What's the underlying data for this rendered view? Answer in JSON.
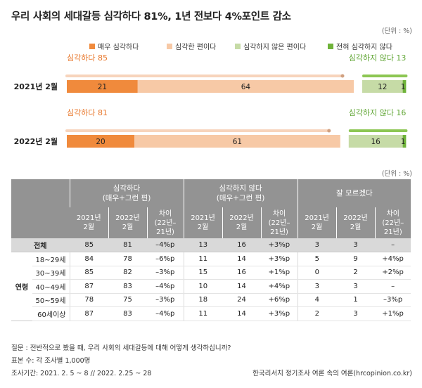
{
  "title": "우리 사회의 세대갈등 심각하다 81%, 1년 전보다 4%포인트 감소",
  "unit": "(단위 : %)",
  "colors": {
    "very_serious": "#f08a3c",
    "serious_ish": "#f7c9a6",
    "not_serious_ish": "#c6dba6",
    "not_at_all": "#6fb33a",
    "serious_line": "#f7d4bc",
    "not_line": "#8cc653",
    "serious_text": "#e8772b",
    "not_text": "#5fa533"
  },
  "chart_data": {
    "type": "bar",
    "orientation": "horizontal",
    "stacked": true,
    "categories": [
      "2021년 2월",
      "2022년 2월"
    ],
    "series": [
      {
        "name": "매우 심각하다",
        "values": [
          21,
          20
        ]
      },
      {
        "name": "심각한 편이다",
        "values": [
          64,
          61
        ]
      },
      {
        "name": "심각하지 않은 편이다",
        "values": [
          12,
          16
        ]
      },
      {
        "name": "전혀 심각하지 않다",
        "values": [
          1,
          1
        ]
      }
    ],
    "summary_left": [
      "심각하다 85",
      "심각하다 81"
    ],
    "summary_right": [
      "심각하지 않다 13",
      "심각하지 않다 16"
    ],
    "legend_position": "top"
  },
  "table": {
    "groups": [
      {
        "line1": "심각하다",
        "line2": "(매우+그런 편)"
      },
      {
        "line1": "심각하지 않다",
        "line2": "(매우+그런 편)"
      },
      {
        "line1": "잘 모르겠다",
        "line2": ""
      }
    ],
    "subheads": [
      {
        "line1": "2021년",
        "line2": "2월",
        "line3": ""
      },
      {
        "line1": "2022년",
        "line2": "2월",
        "line3": ""
      },
      {
        "line1": "차이",
        "line2": "(22년–",
        "line3": "21년)"
      }
    ],
    "total": {
      "label": "전체",
      "cells": [
        "85",
        "81",
        "–4%p",
        "13",
        "16",
        "+3%p",
        "3",
        "3",
        "–"
      ]
    },
    "group_label": "연령",
    "rows": [
      {
        "label": "18~29세",
        "cells": [
          "84",
          "78",
          "–6%p",
          "11",
          "14",
          "+3%p",
          "5",
          "9",
          "+4%p"
        ]
      },
      {
        "label": "30~39세",
        "cells": [
          "85",
          "82",
          "–3%p",
          "15",
          "16",
          "+1%p",
          "0",
          "2",
          "+2%p"
        ]
      },
      {
        "label": "40~49세",
        "cells": [
          "87",
          "83",
          "–4%p",
          "10",
          "14",
          "+4%p",
          "3",
          "3",
          "–"
        ]
      },
      {
        "label": "50~59세",
        "cells": [
          "78",
          "75",
          "–3%p",
          "18",
          "24",
          "+6%p",
          "4",
          "1",
          "–3%p"
        ]
      },
      {
        "label": "60세이상",
        "cells": [
          "87",
          "83",
          "–4%p",
          "11",
          "14",
          "+3%p",
          "2",
          "3",
          "+1%p"
        ]
      }
    ]
  },
  "footer": {
    "question": "질문 : 전반적으로 봤을 때, 우리 사회의 세대갈등에 대해 어떻게 생각하십니까?",
    "sample": "표본 수: 각 조사별 1,000명",
    "dates": "조사기간: 2021. 2. 5 ~ 8 // 2022. 2.25 ~ 28",
    "source": "한국리서치 정기조사 여론 속의 여론(hrcopinion.co.kr)"
  }
}
